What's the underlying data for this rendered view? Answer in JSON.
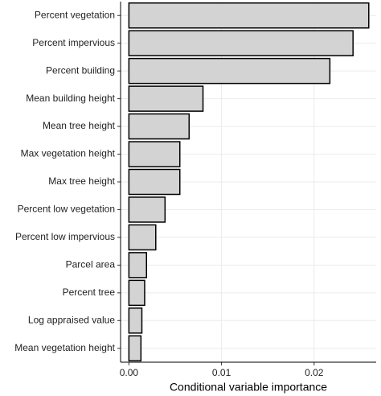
{
  "chart_data": {
    "type": "bar",
    "orientation": "horizontal",
    "x_label": "Conditional variable importance",
    "categories": [
      "Percent vegetation",
      "Percent impervious",
      "Percent building",
      "Mean building height",
      "Mean tree height",
      "Max vegetation height",
      "Max tree height",
      "Percent low vegetation",
      "Percent low impervious",
      "Parcel area",
      "Percent tree",
      "Log appraised value",
      "Mean vegetation height"
    ],
    "values": [
      0.0259,
      0.0242,
      0.0217,
      0.008,
      0.0065,
      0.0055,
      0.0055,
      0.0039,
      0.0029,
      0.0019,
      0.0017,
      0.0014,
      0.0013
    ],
    "color": "#d3d3d3",
    "xlim": [
      -0.0009,
      0.0267
    ],
    "xticks": [
      {
        "value": 0,
        "label": "0.00"
      },
      {
        "value": 0.01,
        "label": "0.01"
      },
      {
        "value": 0.02,
        "label": "0.02"
      }
    ],
    "grid": true
  }
}
